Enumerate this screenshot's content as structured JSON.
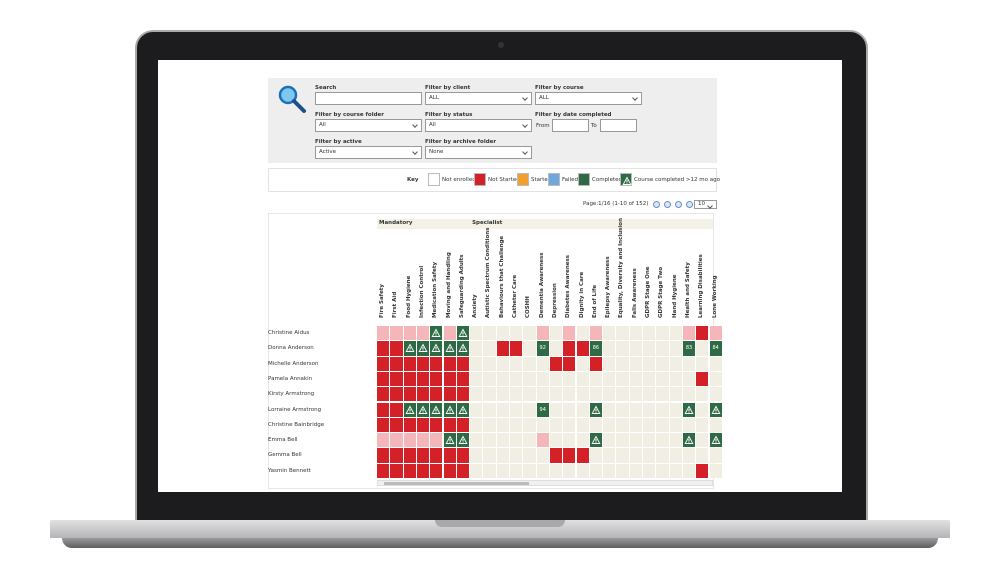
{
  "filters": {
    "search": {
      "label": "Search"
    },
    "client": {
      "label": "Filter by client",
      "value": "ALL"
    },
    "course": {
      "label": "Filter by course",
      "value": "ALL"
    },
    "course_folder": {
      "label": "Filter by course folder",
      "value": "All"
    },
    "status": {
      "label": "Filter by status",
      "value": "All"
    },
    "date_completed": {
      "label": "Filter by date completed",
      "from": "From",
      "to": "To"
    },
    "active": {
      "label": "Filter by active",
      "value": "Active"
    },
    "archive_folder": {
      "label": "Filter by archive folder",
      "value": "None"
    }
  },
  "key": {
    "title": "Key",
    "items": [
      {
        "label": "Not enrolled",
        "color": "#ffffff"
      },
      {
        "label": "Not Started",
        "color": "#d42027"
      },
      {
        "label": "Started",
        "color": "#f0a030"
      },
      {
        "label": "Failed",
        "color": "#6fa8dc"
      },
      {
        "label": "Completed",
        "color": "#2e6b45"
      },
      {
        "label": "Course completed >12 mo ago",
        "color": "#2e6b45",
        "icon": "warning"
      }
    ]
  },
  "pager": {
    "text": "Page:1/16 (1-10 of 152)",
    "page_size": "10"
  },
  "groups": [
    {
      "label": "Mandatory",
      "start": 0
    },
    {
      "label": "Specialist",
      "start": 7
    }
  ],
  "courses": [
    "Fire Safety",
    "First Aid",
    "Food Hygiene",
    "Infection Control",
    "Medication Safety",
    "Moving and Handling",
    "Safeguarding Adults",
    "Anxiety",
    "Autistic Spectrum Conditions",
    "Behaviours that Challenge",
    "Catheter Care",
    "COSHH",
    "Dementia Awareness",
    "Depression",
    "Diabetes Awareness",
    "Dignity in Care",
    "End of Life",
    "Epilepsy Awareness",
    "Equality, Diversity and Inclusion",
    "Falls Awareness",
    "GDPR Stage One",
    "GDPR Stage Two",
    "Hand Hygiene",
    "Health and Safety",
    "Learning Disabilities",
    "Lone Working"
  ],
  "rows": [
    {
      "name": "Christine Aldus",
      "status": "ppppwpw.....p.p.p......prp",
      "scores": {}
    },
    {
      "name": "Donna Anderson",
      "status": "rrwwwww..rr.c.rrc......c.c",
      "scores": {
        "12": "92",
        "16": "86",
        "23": "83",
        "25": "84"
      }
    },
    {
      "name": "Michelle Anderson",
      "status": "rrrrrrr......rr.r.........",
      "scores": {}
    },
    {
      "name": "Pamela Annakin",
      "status": "rrrrrrr.................r.",
      "scores": {}
    },
    {
      "name": "Kirsty Armstrong",
      "status": "rrrrrrr...................",
      "scores": {}
    },
    {
      "name": "Lorraine Armstrong",
      "status": "rrwwwww.....c...w......w.w",
      "scores": {
        "12": "94"
      }
    },
    {
      "name": "Christine Bainbridge",
      "status": "rrrrrrr...................",
      "scores": {}
    },
    {
      "name": "Emma Bell",
      "status": "pppppww.....p...w......w.w",
      "scores": {}
    },
    {
      "name": "Gemma Bell",
      "status": "rrrrrrr......rrr..........",
      "scores": {}
    },
    {
      "name": "Yasmin Bennett",
      "status": "rrrrrrr.................r.",
      "scores": {}
    }
  ]
}
